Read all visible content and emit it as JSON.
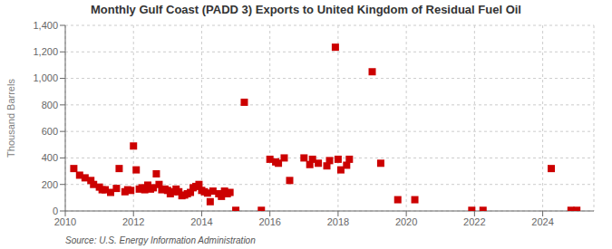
{
  "chart_data": {
    "type": "scatter",
    "title": "Monthly Gulf Coast (PADD 3) Exports to United Kingdom of Residual Fuel Oil",
    "ylabel": "Thousand Barrels",
    "annotations": [
      "Source: U.S. Energy Information Administration"
    ],
    "color": "#cc0000",
    "marker": "square",
    "grid": true,
    "xlim": [
      2010.0,
      2025.5
    ],
    "xticks": [
      2010,
      2012,
      2014,
      2016,
      2018,
      2020,
      2022,
      2024
    ],
    "ylim": [
      0,
      1400
    ],
    "yticks": [
      0,
      200,
      400,
      600,
      800,
      {
        "value": 1000,
        "label": "1,000"
      },
      {
        "value": 1200,
        "label": "1,200"
      },
      {
        "value": 1400,
        "label": "1,400"
      }
    ],
    "x": [
      2010.25,
      2010.42,
      2010.58,
      2010.75,
      2010.83,
      2011.0,
      2011.08,
      2011.17,
      2011.33,
      2011.5,
      2011.58,
      2011.75,
      2011.83,
      2011.92,
      2012.0,
      2012.08,
      2012.17,
      2012.25,
      2012.33,
      2012.42,
      2012.5,
      2012.58,
      2012.67,
      2012.75,
      2012.83,
      2012.92,
      2013.0,
      2013.08,
      2013.17,
      2013.25,
      2013.33,
      2013.42,
      2013.5,
      2013.58,
      2013.67,
      2013.75,
      2013.83,
      2013.92,
      2014.0,
      2014.08,
      2014.17,
      2014.25,
      2014.33,
      2014.5,
      2014.58,
      2014.67,
      2014.75,
      2014.83,
      2015.0,
      2015.25,
      2015.75,
      2016.0,
      2016.17,
      2016.25,
      2016.42,
      2016.58,
      2017.0,
      2017.17,
      2017.25,
      2017.42,
      2017.67,
      2017.75,
      2017.92,
      2018.0,
      2018.08,
      2018.25,
      2018.33,
      2019.0,
      2019.25,
      2019.75,
      2020.25,
      2021.92,
      2022.25,
      2024.25,
      2024.83,
      2025.0
    ],
    "values": [
      320,
      270,
      250,
      230,
      200,
      180,
      160,
      160,
      140,
      170,
      320,
      145,
      160,
      155,
      490,
      310,
      165,
      175,
      160,
      195,
      165,
      175,
      280,
      200,
      160,
      165,
      155,
      130,
      145,
      165,
      145,
      115,
      120,
      130,
      140,
      175,
      185,
      200,
      155,
      145,
      135,
      70,
      150,
      130,
      110,
      150,
      130,
      140,
      5,
      820,
      5,
      390,
      370,
      360,
      400,
      230,
      400,
      350,
      390,
      360,
      340,
      380,
      1235,
      390,
      310,
      345,
      390,
      1050,
      360,
      85,
      85,
      5,
      5,
      320,
      5,
      5
    ]
  }
}
